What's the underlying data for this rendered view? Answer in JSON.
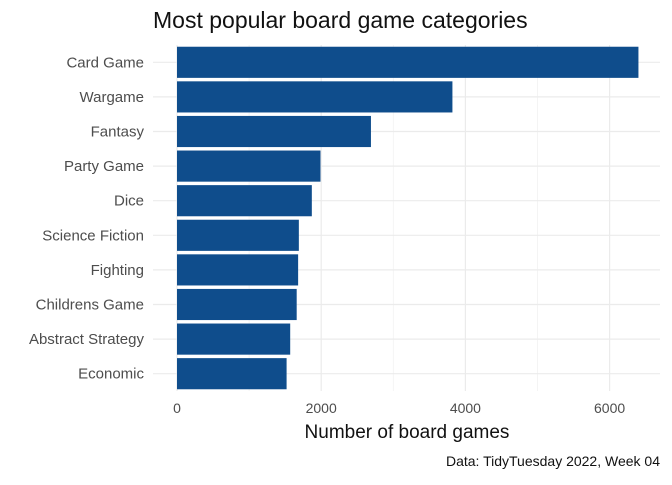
{
  "chart_data": {
    "type": "bar",
    "orientation": "horizontal",
    "title": "Most popular board game categories",
    "xlabel": "Number of board games",
    "ylabel": "",
    "caption": "Data: TidyTuesday 2022, Week 04",
    "categories": [
      "Card Game",
      "Wargame",
      "Fantasy",
      "Party Game",
      "Dice",
      "Science Fiction",
      "Fighting",
      "Childrens Game",
      "Abstract Strategy",
      "Economic"
    ],
    "values": [
      6400,
      3820,
      2690,
      1990,
      1870,
      1690,
      1680,
      1660,
      1570,
      1520
    ],
    "xlim": [
      0,
      6700
    ],
    "x_ticks": [
      0,
      2000,
      4000,
      6000
    ],
    "x_tick_labels": [
      "0",
      "2000",
      "4000",
      "6000"
    ],
    "grid": true,
    "bar_color": "#0f4d8c"
  }
}
